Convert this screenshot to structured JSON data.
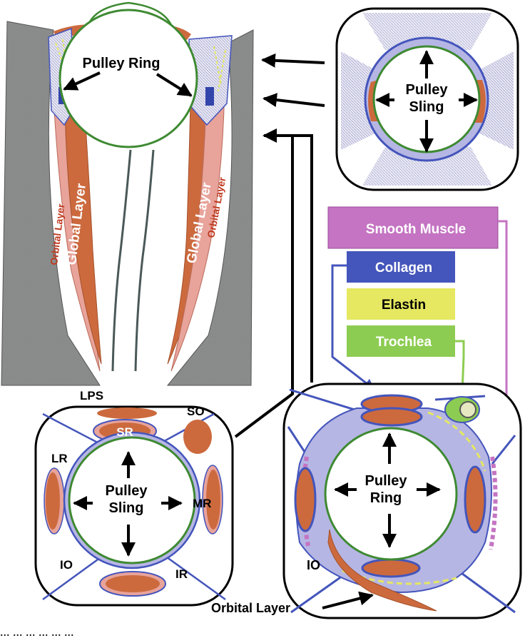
{
  "colors": {
    "muscle": "#cc6a3e",
    "muscle_pink": "#e8a39a",
    "collagen": "#4455bb",
    "collagen_fill": "#b6b6e4",
    "elastin": "#e5e860",
    "trochlea": "#8dcc52",
    "smooth_muscle": "#c474c2",
    "globe": "#3e8a32",
    "wall": "#8a8c8c",
    "cornea": "#b4e0f0"
  },
  "top_left": {
    "pulley_ring": "Pulley Ring",
    "orbital_layer_left": "Orbital Layer",
    "global_layer_left": "Global Layer",
    "global_layer_right": "Global Layer",
    "orbital_layer_right": "Orbital Layer"
  },
  "top_right": {
    "pulley_line1": "Pulley",
    "pulley_line2": "Sling"
  },
  "legend": {
    "smooth_muscle": "Smooth Muscle",
    "collagen": "Collagen",
    "elastin": "Elastin",
    "trochlea": "Trochlea"
  },
  "bottom_left": {
    "lps": "LPS",
    "so": "SO",
    "sr": "SR",
    "lr": "LR",
    "mr": "MR",
    "io": "IO",
    "ir": "IR",
    "pulley_line1": "Pulley",
    "pulley_line2": "Sling"
  },
  "bottom_right": {
    "pulley_line1": "Pulley",
    "pulley_line2": "Ring",
    "io": "IO",
    "orbital_layer": "Orbital Layer"
  },
  "caption": "... ... ... ... ... ..."
}
